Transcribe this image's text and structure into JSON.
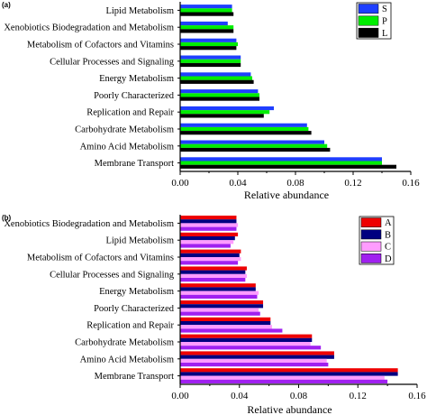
{
  "chart_data": [
    {
      "panel": "(a)",
      "type": "bar",
      "orientation": "horizontal",
      "categories": [
        "Membrane Transport",
        "Amino Acid Metabolism",
        "Carbohydrate Metabolism",
        "Replication and Repair",
        "Poorly Characterized",
        "Energy Metabolism",
        "Cellular Processes and Signaling",
        "Metabolism of Cofactors and Vitamins",
        "Xenobiotics Biodegradation and Metabolism",
        "Lipid Metabolism"
      ],
      "series": [
        {
          "name": "S",
          "color": "#1f3fff",
          "values": [
            0.14,
            0.1,
            0.088,
            0.065,
            0.054,
            0.049,
            0.042,
            0.039,
            0.033,
            0.036
          ]
        },
        {
          "name": "P",
          "color": "#00ee00",
          "values": [
            0.14,
            0.102,
            0.089,
            0.062,
            0.055,
            0.05,
            0.042,
            0.04,
            0.037,
            0.036
          ]
        },
        {
          "name": "L",
          "color": "#000000",
          "values": [
            0.15,
            0.104,
            0.091,
            0.058,
            0.055,
            0.051,
            0.042,
            0.039,
            0.037,
            0.037
          ]
        }
      ],
      "xlabel": "Relative abundance",
      "ylabel": "",
      "xlim": [
        0,
        0.16
      ],
      "xticks": [
        "0.00",
        "0.04",
        "0.08",
        "0.12",
        "0.16"
      ],
      "legend_position": "top-right",
      "grid": false
    },
    {
      "panel": "(b)",
      "type": "bar",
      "orientation": "horizontal",
      "categories": [
        "Membrane Transport",
        "Amino Acid Metabolism",
        "Carbohydrate Metabolism",
        "Replication and Repair",
        "Poorly Characterized",
        "Energy Metabolism",
        "Cellular Processes and Signaling",
        "Metabolism of Cofactors and Vitamins",
        "Lipid Metabolism",
        "Xenobiotics Biodegradation and Metabolism"
      ],
      "series": [
        {
          "name": "A",
          "color": "#ee0000",
          "values": [
            0.147,
            0.104,
            0.089,
            0.061,
            0.056,
            0.051,
            0.045,
            0.041,
            0.039,
            0.038
          ]
        },
        {
          "name": "B",
          "color": "#000080",
          "values": [
            0.147,
            0.104,
            0.089,
            0.061,
            0.056,
            0.051,
            0.044,
            0.04,
            0.037,
            0.038
          ]
        },
        {
          "name": "C",
          "color": "#ff9cff",
          "values": [
            0.138,
            0.099,
            0.088,
            0.062,
            0.053,
            0.053,
            0.045,
            0.041,
            0.036,
            0.039
          ]
        },
        {
          "name": "D",
          "color": "#a020f0",
          "values": [
            0.14,
            0.1,
            0.095,
            0.069,
            0.054,
            0.052,
            0.044,
            0.039,
            0.034,
            0.038
          ]
        }
      ],
      "xlabel": "Relative abundance",
      "ylabel": "",
      "xlim": [
        0,
        0.16
      ],
      "xticks": [
        "0.00",
        "0.04",
        "0.08",
        "0.12",
        "0.16"
      ],
      "legend_position": "top-right",
      "grid": false
    }
  ]
}
